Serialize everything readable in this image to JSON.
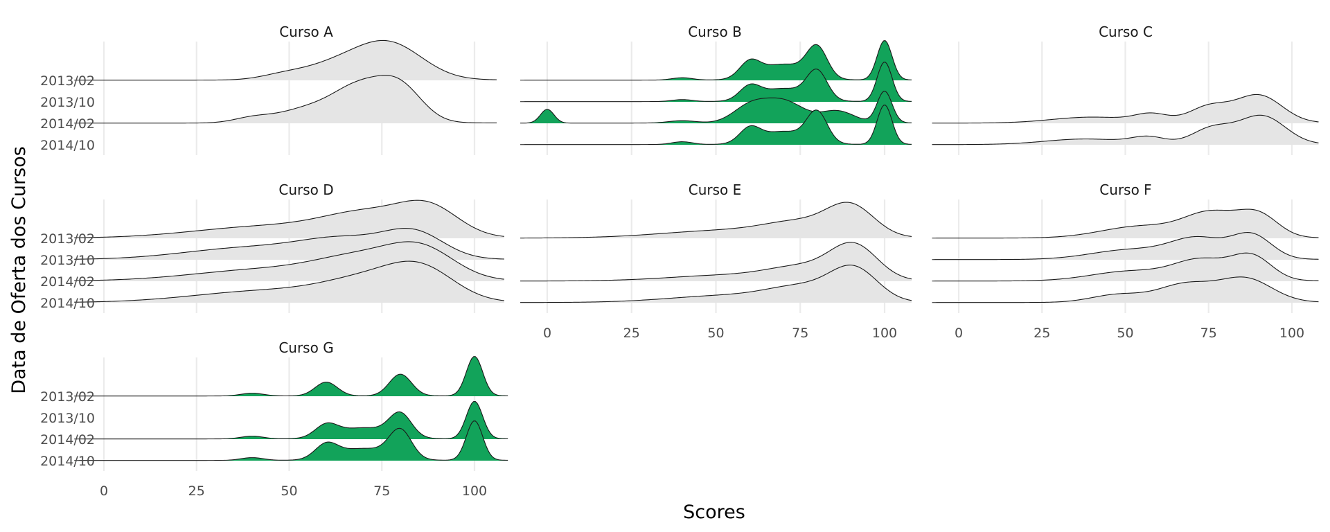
{
  "chart_data": {
    "type": "ridgeline",
    "xlabel": "Scores",
    "ylabel": "Data de Oferta dos Cursos",
    "x_ticks": [
      0,
      25,
      50,
      75,
      100
    ],
    "y_categories": [
      "2013/02",
      "2013/10",
      "2014/02",
      "2014/10"
    ],
    "grid": true,
    "colors": {
      "multimodal": "#12a35a",
      "unimodal": "#e5e5e5",
      "outline": "#1a1a1a"
    },
    "panels": [
      {
        "title": "Curso A",
        "fill": "multimodal_no",
        "x_range": [
          -8,
          106
        ],
        "series": [
          {
            "name": "2013/02",
            "components": [
              [
                48,
                6,
                0.1
              ],
              [
                62,
                9,
                0.35
              ],
              [
                77,
                9,
                0.9
              ]
            ]
          },
          {
            "name": "2014/02",
            "components": [
              [
                40,
                5,
                0.12
              ],
              [
                55,
                8,
                0.35
              ],
              [
                69,
                7,
                0.85
              ],
              [
                80,
                6,
                0.85
              ]
            ]
          }
        ]
      },
      {
        "title": "Curso B",
        "fill": "multimodal",
        "x_range": [
          -8,
          108
        ],
        "series": [
          {
            "name": "2013/02",
            "components": [
              [
                40,
                3,
                0.06
              ],
              [
                60,
                3,
                0.38
              ],
              [
                70,
                7,
                0.4
              ],
              [
                80,
                3,
                0.75
              ],
              [
                100,
                2.2,
                1.0
              ]
            ]
          },
          {
            "name": "2013/10",
            "components": [
              [
                40,
                3,
                0.05
              ],
              [
                60,
                3,
                0.32
              ],
              [
                70,
                7,
                0.33
              ],
              [
                80,
                3,
                0.7
              ],
              [
                100,
                2.2,
                1.0
              ]
            ]
          },
          {
            "name": "2014/02",
            "components": [
              [
                0,
                2,
                0.35
              ],
              [
                40,
                4,
                0.06
              ],
              [
                60,
                5,
                0.4
              ],
              [
                70,
                6,
                0.55
              ],
              [
                86,
                5,
                0.3
              ],
              [
                100,
                2.2,
                0.8
              ]
            ]
          },
          {
            "name": "2014/10",
            "components": [
              [
                40,
                3,
                0.07
              ],
              [
                60,
                3,
                0.35
              ],
              [
                70,
                7,
                0.33
              ],
              [
                80,
                3,
                0.75
              ],
              [
                100,
                2.2,
                1.0
              ]
            ]
          }
        ]
      },
      {
        "title": "Curso C",
        "fill": "unimodal",
        "x_range": [
          -8,
          108
        ],
        "series": [
          {
            "name": "2014/02",
            "components": [
              [
                40,
                12,
                0.15
              ],
              [
                58,
                5,
                0.2
              ],
              [
                75,
                6,
                0.4
              ],
              [
                90,
                7,
                0.7
              ]
            ]
          },
          {
            "name": "2014/10",
            "components": [
              [
                38,
                12,
                0.14
              ],
              [
                57,
                5,
                0.17
              ],
              [
                76,
                6,
                0.4
              ],
              [
                91,
                7,
                0.72
              ]
            ]
          }
        ]
      },
      {
        "title": "Curso D",
        "fill": "unimodal",
        "x_range": [
          -8,
          108
        ],
        "series": [
          {
            "name": "2013/02",
            "components": [
              [
                45,
                20,
                0.3
              ],
              [
                72,
                12,
                0.55
              ],
              [
                88,
                8,
                0.65
              ]
            ]
          },
          {
            "name": "2013/10",
            "components": [
              [
                40,
                18,
                0.3
              ],
              [
                66,
                12,
                0.45
              ],
              [
                84,
                8,
                0.6
              ]
            ]
          },
          {
            "name": "2014/02",
            "components": [
              [
                45,
                20,
                0.3
              ],
              [
                70,
                12,
                0.5
              ],
              [
                86,
                9,
                0.7
              ]
            ]
          },
          {
            "name": "2014/10",
            "components": [
              [
                45,
                20,
                0.3
              ],
              [
                72,
                12,
                0.5
              ],
              [
                86,
                9,
                0.7
              ]
            ]
          }
        ]
      },
      {
        "title": "Curso E",
        "fill": "unimodal",
        "x_range": [
          -8,
          108
        ],
        "series": [
          {
            "name": "2013/02",
            "components": [
              [
                55,
                20,
                0.2
              ],
              [
                75,
                10,
                0.3
              ],
              [
                90,
                7,
                0.75
              ]
            ]
          },
          {
            "name": "2014/02",
            "components": [
              [
                55,
                18,
                0.15
              ],
              [
                76,
                10,
                0.3
              ],
              [
                91,
                7,
                0.85
              ]
            ]
          },
          {
            "name": "2014/10",
            "components": [
              [
                55,
                18,
                0.18
              ],
              [
                76,
                10,
                0.33
              ],
              [
                91,
                7,
                0.8
              ]
            ]
          }
        ]
      },
      {
        "title": "Curso F",
        "fill": "unimodal",
        "x_range": [
          -8,
          108
        ],
        "series": [
          {
            "name": "2013/02",
            "components": [
              [
                55,
                12,
                0.3
              ],
              [
                76,
                8,
                0.6
              ],
              [
                90,
                6,
                0.55
              ]
            ]
          },
          {
            "name": "2013/10",
            "components": [
              [
                52,
                12,
                0.25
              ],
              [
                72,
                8,
                0.5
              ],
              [
                88,
                6,
                0.6
              ]
            ]
          },
          {
            "name": "2014/02",
            "components": [
              [
                52,
                12,
                0.25
              ],
              [
                73,
                8,
                0.5
              ],
              [
                88,
                6,
                0.6
              ]
            ]
          },
          {
            "name": "2014/10",
            "components": [
              [
                48,
                8,
                0.2
              ],
              [
                68,
                8,
                0.45
              ],
              [
                86,
                8,
                0.6
              ]
            ]
          }
        ]
      },
      {
        "title": "Curso G",
        "fill": "multimodal",
        "x_range": [
          -8,
          109
        ],
        "series": [
          {
            "name": "2013/02",
            "components": [
              [
                40,
                3,
                0.07
              ],
              [
                60,
                3,
                0.35
              ],
              [
                80,
                3,
                0.55
              ],
              [
                100,
                2.2,
                1.0
              ]
            ]
          },
          {
            "name": "2014/02",
            "components": [
              [
                40,
                3,
                0.07
              ],
              [
                60,
                3,
                0.3
              ],
              [
                70,
                7,
                0.28
              ],
              [
                80,
                3,
                0.58
              ],
              [
                100,
                2.2,
                0.95
              ]
            ]
          },
          {
            "name": "2014/10",
            "components": [
              [
                40,
                3,
                0.07
              ],
              [
                60,
                3,
                0.35
              ],
              [
                70,
                7,
                0.3
              ],
              [
                80,
                3,
                0.7
              ],
              [
                100,
                2.2,
                1.0
              ]
            ]
          }
        ]
      }
    ]
  }
}
